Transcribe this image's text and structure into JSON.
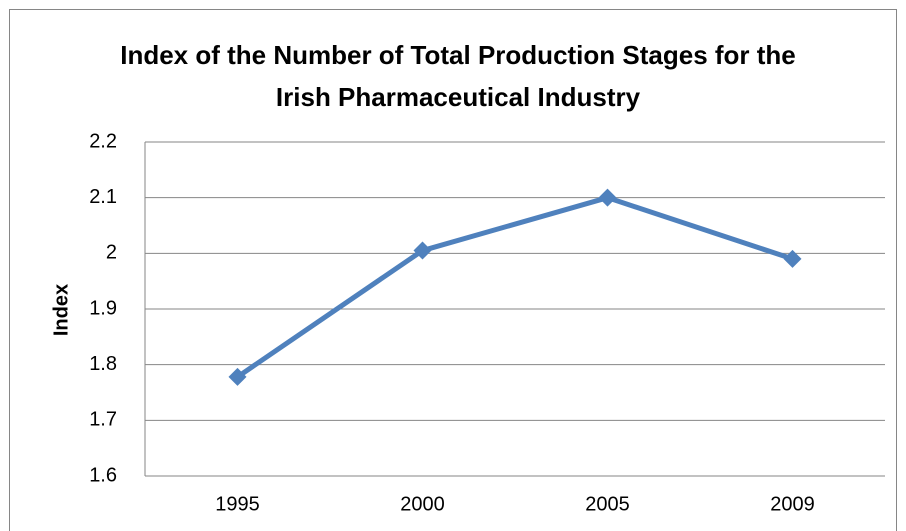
{
  "chart_data": {
    "type": "line",
    "title": "Index of the Number of Total Production Stages for the Irish Pharmaceutical Industry",
    "y_label": "Index",
    "categories": [
      "1995",
      "2000",
      "2005",
      "2009"
    ],
    "series": [
      {
        "name": "Index",
        "color": "#4f81bd",
        "values": [
          1.778,
          2.005,
          2.1,
          1.99
        ]
      }
    ],
    "ylim": [
      1.6,
      2.2
    ],
    "yticks": [
      1.6,
      1.7,
      1.8,
      1.9,
      2,
      2.1,
      2.2
    ],
    "grid": true,
    "legend": false
  }
}
